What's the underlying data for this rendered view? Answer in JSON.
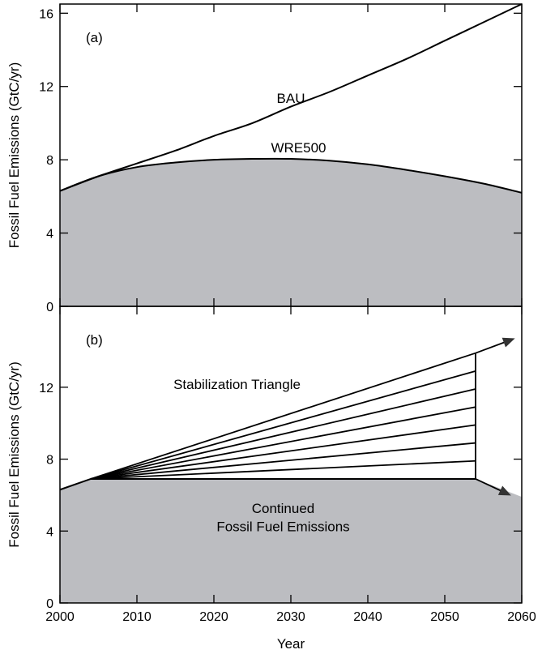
{
  "chart_data": [
    {
      "type": "area",
      "panel_label": "(a)",
      "ylabel": "Fossil Fuel Emissions (GtC/yr)",
      "xlim": [
        2000,
        2060
      ],
      "ylim": [
        0,
        16.5
      ],
      "x_ticks": [
        2000,
        2010,
        2020,
        2030,
        2040,
        2050,
        2060
      ],
      "y_ticks": [
        0,
        4,
        8,
        12,
        16
      ],
      "y_tick_labels": [
        "0",
        "4",
        "8",
        "12",
        "16"
      ],
      "series": [
        {
          "name": "BAU",
          "fill": false,
          "x": [
            2000,
            2005,
            2010,
            2015,
            2020,
            2025,
            2030,
            2035,
            2040,
            2045,
            2050,
            2055,
            2060
          ],
          "y": [
            6.3,
            7.1,
            7.8,
            8.5,
            9.3,
            10.0,
            10.9,
            11.7,
            12.6,
            13.5,
            14.5,
            15.5,
            16.5
          ]
        },
        {
          "name": "WRE500",
          "fill": true,
          "x": [
            2000,
            2005,
            2010,
            2015,
            2020,
            2025,
            2030,
            2035,
            2040,
            2045,
            2050,
            2055,
            2060
          ],
          "y": [
            6.3,
            7.1,
            7.6,
            7.85,
            8.0,
            8.05,
            8.05,
            7.95,
            7.75,
            7.45,
            7.1,
            6.7,
            6.2
          ]
        }
      ],
      "annotations": [
        {
          "text": "BAU",
          "x": 2030,
          "y": 11.1
        },
        {
          "text": "WRE500",
          "x": 2031,
          "y": 8.4
        }
      ]
    },
    {
      "type": "area",
      "panel_label": "(b)",
      "xlabel": "Year",
      "ylabel": "Fossil Fuel Emissions (GtC/yr)",
      "xlim": [
        2000,
        2060
      ],
      "ylim": [
        0,
        16.5
      ],
      "x_ticks": [
        2000,
        2010,
        2020,
        2030,
        2040,
        2050,
        2060
      ],
      "x_tick_labels": [
        "2000",
        "2010",
        "2020",
        "2030",
        "2040",
        "2050",
        "2060"
      ],
      "y_ticks": [
        0,
        4,
        8,
        12
      ],
      "y_tick_labels": [
        "0",
        "4",
        "8",
        "12"
      ],
      "fill_region": {
        "name": "Continued Fossil Fuel Emissions",
        "x": [
          2000,
          2004,
          2054,
          2060
        ],
        "y": [
          6.3,
          6.9,
          6.9,
          5.9
        ]
      },
      "wedges": {
        "start": [
          2004,
          6.9
        ],
        "end_x": 2054,
        "end_y": [
          6.9,
          7.9,
          8.9,
          9.9,
          10.9,
          11.9,
          12.9,
          13.9
        ]
      },
      "arrows": [
        {
          "from": [
            2054,
            13.9
          ],
          "to": [
            2059,
            14.7
          ]
        },
        {
          "from": [
            2054,
            6.9
          ],
          "to": [
            2058.5,
            6.0
          ]
        }
      ],
      "annotations": [
        {
          "text": "Stabilization Triangle",
          "x": 2023,
          "y": 11.9
        },
        {
          "text": "Continued",
          "x": 2029,
          "y": 5.0
        },
        {
          "text": "Fossil Fuel Emissions",
          "x": 2029,
          "y": 4.0
        }
      ]
    }
  ]
}
